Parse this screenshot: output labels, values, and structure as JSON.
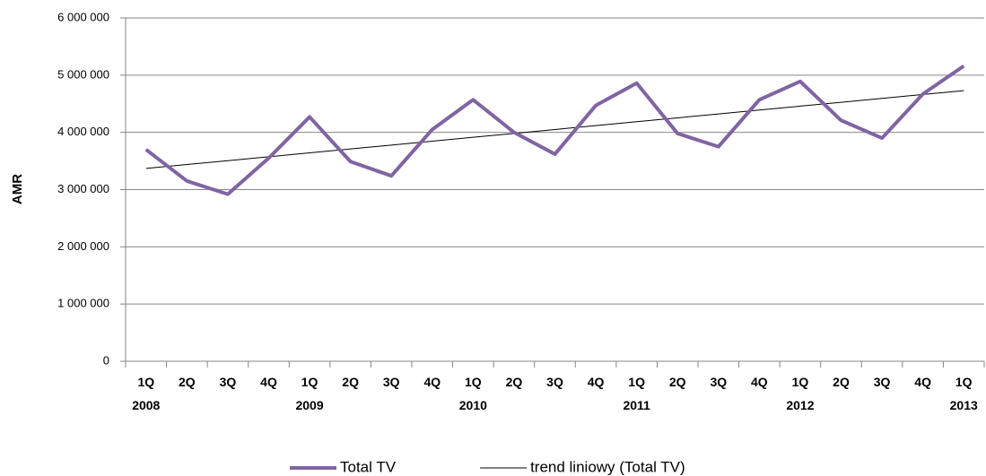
{
  "chart_data": {
    "type": "line",
    "y_label": "AMR",
    "categories": [
      "1Q\n2008",
      "2Q",
      "3Q",
      "4Q",
      "1Q\n2009",
      "2Q",
      "3Q",
      "4Q",
      "1Q\n2010",
      "2Q",
      "3Q",
      "4Q",
      "1Q\n2011",
      "2Q",
      "3Q",
      "4Q",
      "1Q\n2012",
      "2Q",
      "3Q",
      "4Q",
      "1Q\n2013"
    ],
    "series": [
      {
        "name": "Total TV",
        "color": "#8064a2",
        "values": [
          3700000,
          3150000,
          2920000,
          3550000,
          4270000,
          3490000,
          3240000,
          4050000,
          4570000,
          4000000,
          3620000,
          4470000,
          4860000,
          3980000,
          3750000,
          4570000,
          4890000,
          4210000,
          3900000,
          4670000,
          5160000
        ]
      },
      {
        "name": "trend liniowy (Total TV)",
        "color": "#000000",
        "values": [
          3370000,
          3438000,
          3506000,
          3574000,
          3642000,
          3710000,
          3778000,
          3846000,
          3914000,
          3982000,
          4050000,
          4118000,
          4186000,
          4254000,
          4322000,
          4390000,
          4458000,
          4526000,
          4594000,
          4662000,
          4730000
        ]
      }
    ],
    "ylim": [
      0,
      6000000
    ],
    "yticks": [
      0,
      {
        "value": 1000000,
        "label": "1 000 000"
      },
      {
        "value": 2000000,
        "label": "2 000 000"
      },
      {
        "value": 3000000,
        "label": "3 000 000"
      },
      {
        "value": 4000000,
        "label": "4 000 000"
      },
      {
        "value": 5000000,
        "label": "5 000 000"
      },
      {
        "value": 6000000,
        "label": "6 000 000"
      }
    ],
    "grid": true,
    "legend": "bottom"
  }
}
